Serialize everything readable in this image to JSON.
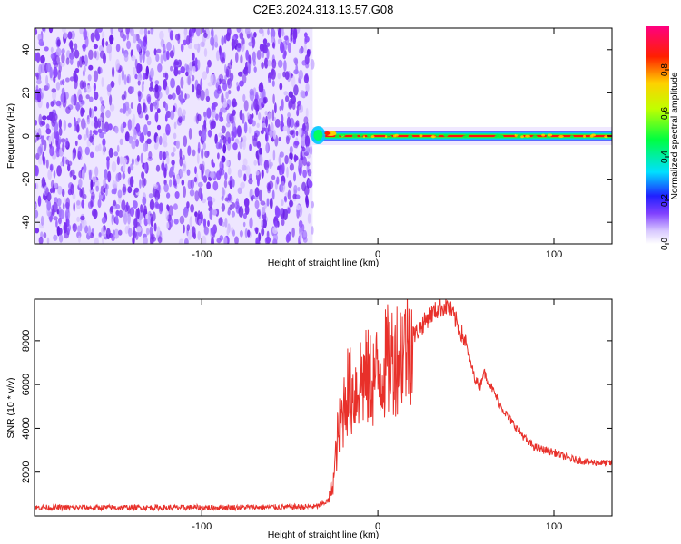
{
  "title": "C2E3.2024.313.13.57.G08",
  "chart_data": [
    {
      "type": "heatmap",
      "xlabel": "Height of straight line (km)",
      "ylabel": "Frequency (Hz)",
      "xlim": [
        -195,
        133
      ],
      "ylim": [
        -50,
        50
      ],
      "xticks": [
        -100,
        0,
        100
      ],
      "xtick_labels": [
        "-100",
        "0",
        "100"
      ],
      "yticks": [
        -40,
        -20,
        0,
        20,
        40
      ],
      "ytick_labels": [
        "-40",
        "-20",
        "0",
        "20",
        "40"
      ],
      "noise_region_x": [
        -195,
        -37
      ],
      "signal_line_y": 0,
      "signal_start_x": -37,
      "grid": false
    },
    {
      "type": "colorbar",
      "label": "Normalized spectral amplitude",
      "range": [
        0.0,
        1.0
      ],
      "ticks": [
        0.0,
        0.2,
        0.4,
        0.6,
        0.8
      ],
      "tick_labels": [
        "0.0",
        "0.2",
        "0.4",
        "0.6",
        "0.8"
      ],
      "colors": [
        "#ffffff",
        "#d8c8ff",
        "#8040ff",
        "#2020ff",
        "#00e0ff",
        "#00ff40",
        "#c0ff00",
        "#ffd000",
        "#ff2000",
        "#ff0080"
      ]
    },
    {
      "type": "line",
      "xlabel": "Height of straight line (km)",
      "ylabel": "SNR (10 * v/v)",
      "xlim": [
        -195,
        133
      ],
      "ylim": [
        0,
        9900
      ],
      "xticks": [
        -100,
        0,
        100
      ],
      "xtick_labels": [
        "-100",
        "0",
        "100"
      ],
      "yticks": [
        2000,
        4000,
        6000,
        8000
      ],
      "ytick_labels": [
        "2000",
        "4000",
        "6000",
        "8000"
      ],
      "color": "#e8302a",
      "grid": false,
      "series": [
        {
          "x": [
            -195,
            -150,
            -100,
            -60,
            -35,
            -28,
            -25,
            -23,
            -20,
            -18,
            -15,
            -12,
            -10,
            -5,
            0,
            5,
            10,
            15,
            20,
            25,
            30,
            35,
            40,
            45,
            50,
            52,
            55,
            58,
            60,
            65,
            70,
            75,
            80,
            85,
            90,
            100,
            110,
            120,
            133
          ],
          "y": [
            380,
            380,
            380,
            400,
            420,
            700,
            1700,
            3500,
            4600,
            5800,
            5600,
            5800,
            6300,
            6200,
            6400,
            7000,
            7300,
            7700,
            8200,
            8700,
            9200,
            9500,
            9600,
            8800,
            7900,
            7200,
            6300,
            5900,
            6600,
            5800,
            5000,
            4400,
            3900,
            3400,
            3100,
            2900,
            2600,
            2450,
            2400
          ]
        }
      ]
    }
  ]
}
